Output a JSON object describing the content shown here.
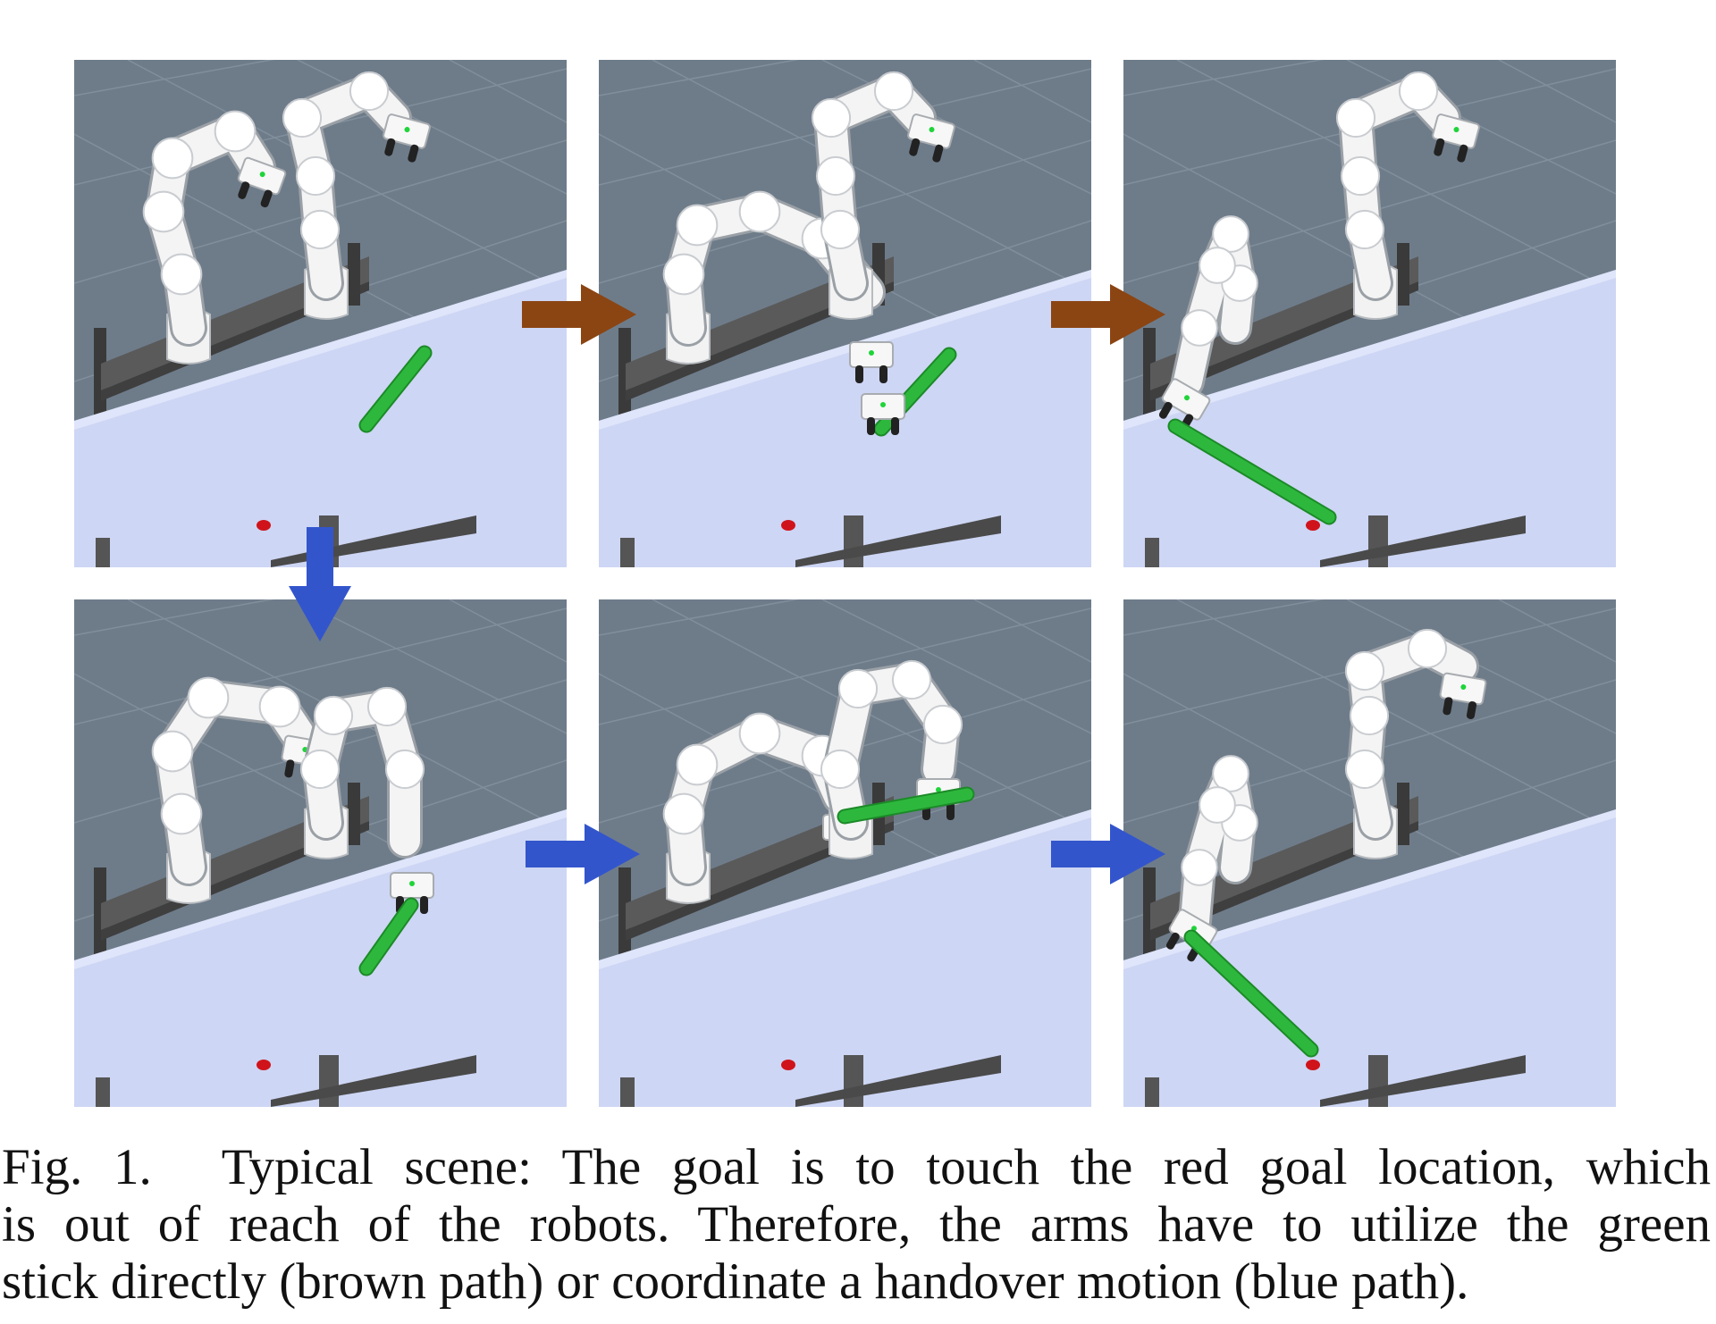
{
  "figure": {
    "panels": [
      {
        "id": 1,
        "stage": "initial",
        "stick": "on-table"
      },
      {
        "id": 2,
        "stage": "grasp",
        "stick": "in-gripper"
      },
      {
        "id": 3,
        "stage": "touch-goal",
        "stick": "touching-goal"
      },
      {
        "id": 4,
        "stage": "grasp",
        "stick": "in-gripper"
      },
      {
        "id": 5,
        "stage": "handover",
        "stick": "held-by-both"
      },
      {
        "id": 6,
        "stage": "touch-goal",
        "stick": "touching-goal"
      }
    ],
    "colors": {
      "brown_path": "#8b4513",
      "blue_path": "#3355cc",
      "stick": "#2db83d",
      "goal": "#d0131b",
      "table": "#cdd6f4",
      "floor": "#6e7c8a"
    }
  },
  "caption": {
    "label": "Fig. 1.",
    "lines": [
      "Typical scene: The goal is to touch the red goal location, which",
      "is out of reach of the robots. Therefore, the arms have to utilize the green",
      "stick directly (brown path) or coordinate a handover motion (blue path)."
    ]
  }
}
